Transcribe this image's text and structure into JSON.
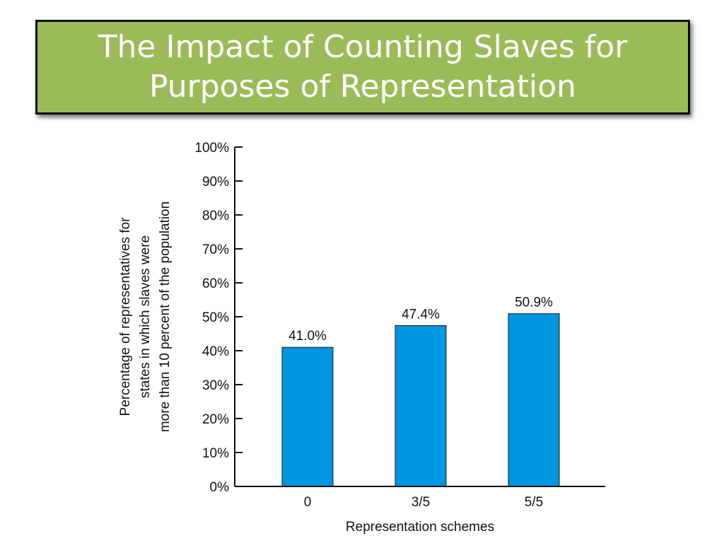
{
  "slide": {
    "title": "The Impact of Counting Slaves for Purposes of Representation"
  },
  "chart_data": {
    "type": "bar",
    "categories": [
      "0",
      "3/5",
      "5/5"
    ],
    "values": [
      41.0,
      47.4,
      50.9
    ],
    "data_labels": [
      "41.0%",
      "47.4%",
      "50.9%"
    ],
    "y_ticks": [
      "0%",
      "10%",
      "20%",
      "30%",
      "40%",
      "50%",
      "60%",
      "70%",
      "80%",
      "90%",
      "100%"
    ],
    "ylim": [
      0,
      100
    ],
    "xlabel": "Representation schemes",
    "ylabel_lines": [
      "Percentage of representatives for",
      "states in which slaves were",
      "more than 10 percent of the population"
    ],
    "bar_color": "#0095e0",
    "grid": false
  },
  "colors": {
    "title_background": "#9bbb59",
    "title_text": "#ffffff"
  }
}
